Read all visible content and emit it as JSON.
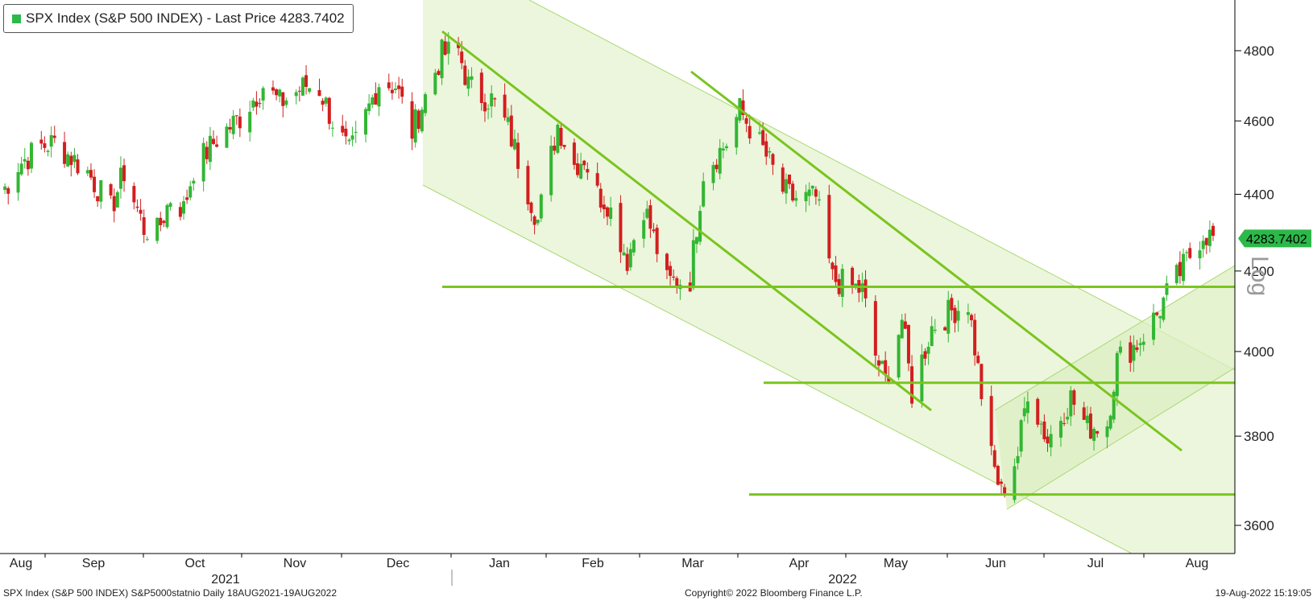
{
  "legend": {
    "label": "SPX Index (S&P 500 INDEX) - Last Price 4283.7402",
    "color": "#2db84a"
  },
  "footer": {
    "left": "SPX Index (S&P 500 INDEX) S&P5000statnio  Daily 18AUG2021-19AUG2022",
    "center": "Copyright© 2022 Bloomberg Finance L.P.",
    "right": "19-Aug-2022 15:19:05"
  },
  "axis": {
    "scale_label": "Log",
    "last_price_tag": "4283.7402"
  },
  "colors": {
    "up": "#33b633",
    "down": "#d21f1f",
    "trendline": "#7ac51e",
    "channel_fill": "#eaf5d9",
    "channel_edge": "#aad872"
  },
  "chart_data": {
    "type": "candlestick",
    "scale": "log",
    "ylim": [
      3540,
      4940
    ],
    "yticks": [
      3600,
      3800,
      4000,
      4200,
      4400,
      4600,
      4800
    ],
    "month_labels": [
      "Aug",
      "Sep",
      "Oct",
      "Nov",
      "Dec",
      "Jan",
      "Feb",
      "Mar",
      "Apr",
      "May",
      "Jun",
      "Jul",
      "Aug"
    ],
    "year_labels": [
      "2021",
      "2022"
    ],
    "last_price": 4283.7402,
    "horizontal_levels": [
      4160,
      3925,
      3668
    ],
    "close_series": [
      [
        "2021-08-18",
        4400
      ],
      [
        "2021-08-23",
        4480
      ],
      [
        "2021-08-30",
        4530
      ],
      [
        "2021-09-03",
        4540
      ],
      [
        "2021-09-08",
        4500
      ],
      [
        "2021-09-13",
        4460
      ],
      [
        "2021-09-20",
        4360
      ],
      [
        "2021-09-24",
        4460
      ],
      [
        "2021-09-30",
        4310
      ],
      [
        "2021-10-04",
        4300
      ],
      [
        "2021-10-08",
        4390
      ],
      [
        "2021-10-12",
        4360
      ],
      [
        "2021-10-15",
        4470
      ],
      [
        "2021-10-22",
        4550
      ],
      [
        "2021-10-29",
        4610
      ],
      [
        "2021-11-05",
        4700
      ],
      [
        "2021-11-10",
        4650
      ],
      [
        "2021-11-18",
        4700
      ],
      [
        "2021-11-22",
        4690
      ],
      [
        "2021-11-26",
        4600
      ],
      [
        "2021-12-01",
        4510
      ],
      [
        "2021-12-03",
        4540
      ],
      [
        "2021-12-10",
        4710
      ],
      [
        "2021-12-15",
        4700
      ],
      [
        "2021-12-20",
        4570
      ],
      [
        "2021-12-29",
        4790
      ],
      [
        "2022-01-03",
        4800
      ],
      [
        "2022-01-06",
        4700
      ],
      [
        "2022-01-10",
        4670
      ],
      [
        "2022-01-13",
        4660
      ],
      [
        "2022-01-18",
        4580
      ],
      [
        "2022-01-24",
        4410
      ],
      [
        "2022-01-27",
        4330
      ],
      [
        "2022-02-02",
        4590
      ],
      [
        "2022-02-07",
        4480
      ],
      [
        "2022-02-10",
        4500
      ],
      [
        "2022-02-14",
        4400
      ],
      [
        "2022-02-17",
        4380
      ],
      [
        "2022-02-23",
        4230
      ],
      [
        "2022-02-28",
        4370
      ],
      [
        "2022-03-07",
        4170
      ],
      [
        "2022-03-14",
        4180
      ],
      [
        "2022-03-18",
        4460
      ],
      [
        "2022-03-25",
        4540
      ],
      [
        "2022-03-29",
        4630
      ],
      [
        "2022-04-05",
        4520
      ],
      [
        "2022-04-11",
        4410
      ],
      [
        "2022-04-14",
        4390
      ],
      [
        "2022-04-21",
        4390
      ],
      [
        "2022-04-26",
        4180
      ],
      [
        "2022-05-02",
        4160
      ],
      [
        "2022-05-05",
        4150
      ],
      [
        "2022-05-09",
        3990
      ],
      [
        "2022-05-12",
        3930
      ],
      [
        "2022-05-17",
        4080
      ],
      [
        "2022-05-20",
        3900
      ],
      [
        "2022-05-26",
        4060
      ],
      [
        "2022-06-01",
        4100
      ],
      [
        "2022-06-06",
        4120
      ],
      [
        "2022-06-10",
        3900
      ],
      [
        "2022-06-13",
        3750
      ],
      [
        "2022-06-16",
        3670
      ],
      [
        "2022-06-21",
        3760
      ],
      [
        "2022-06-24",
        3910
      ],
      [
        "2022-06-30",
        3790
      ],
      [
        "2022-07-07",
        3890
      ],
      [
        "2022-07-12",
        3820
      ],
      [
        "2022-07-18",
        3830
      ],
      [
        "2022-07-21",
        3980
      ],
      [
        "2022-07-27",
        4020
      ],
      [
        "2022-08-02",
        4090
      ],
      [
        "2022-08-05",
        4140
      ],
      [
        "2022-08-10",
        4210
      ],
      [
        "2022-08-16",
        4300
      ],
      [
        "2022-08-19",
        4283.74
      ]
    ]
  }
}
